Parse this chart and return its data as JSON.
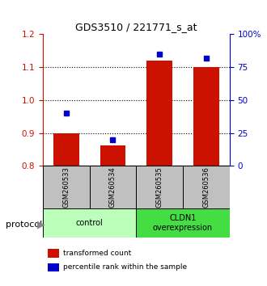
{
  "title": "GDS3510 / 221771_s_at",
  "samples": [
    "GSM260533",
    "GSM260534",
    "GSM260535",
    "GSM260536"
  ],
  "red_values": [
    0.9,
    0.862,
    1.12,
    1.1
  ],
  "blue_values": [
    40,
    20,
    85,
    82
  ],
  "ylim_left": [
    0.8,
    1.2
  ],
  "ylim_right": [
    0,
    100
  ],
  "yticks_left": [
    0.8,
    0.9,
    1.0,
    1.1,
    1.2
  ],
  "yticks_right": [
    0,
    25,
    50,
    75,
    100
  ],
  "ytick_labels_right": [
    "0",
    "25",
    "50",
    "75",
    "100%"
  ],
  "dotted_lines": [
    0.9,
    1.0,
    1.1
  ],
  "bar_color": "#cc1100",
  "dot_color": "#0000cc",
  "bar_width": 0.55,
  "groups": [
    {
      "label": "control",
      "indices": [
        0,
        1
      ],
      "color": "#bbffbb"
    },
    {
      "label": "CLDN1\noverexpression",
      "indices": [
        2,
        3
      ],
      "color": "#44dd44"
    }
  ],
  "protocol_label": "protocol",
  "legend_red_label": "transformed count",
  "legend_blue_label": "percentile rank within the sample",
  "tick_color_left": "#cc1100",
  "tick_color_right": "#0000cc",
  "sample_box_color": "#c0c0c0"
}
